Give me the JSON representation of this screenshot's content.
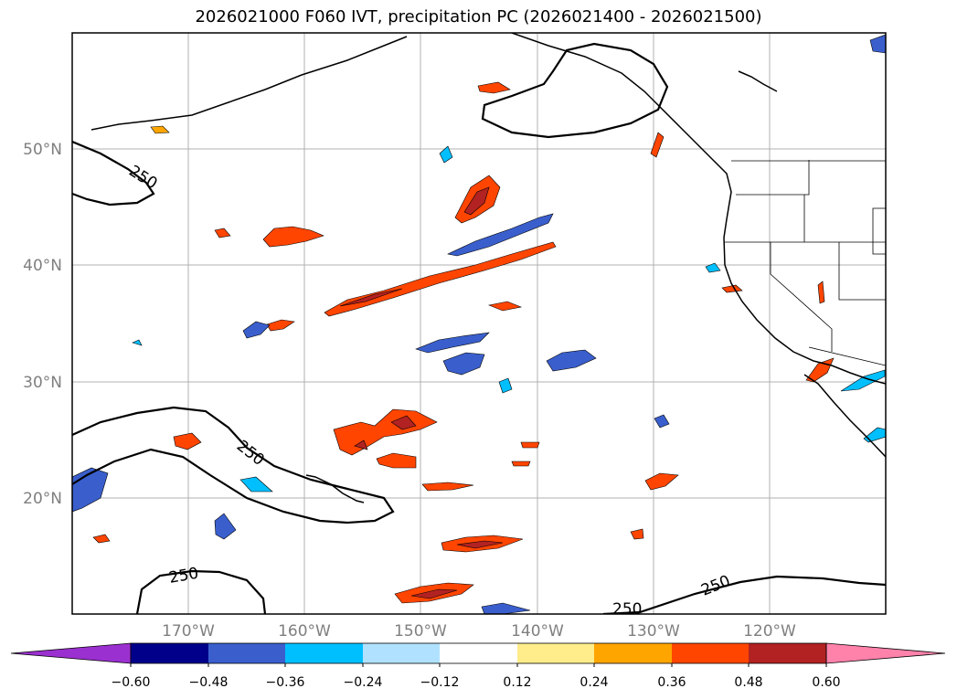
{
  "title": "2026021000 F060 IVT, precipitation PC (2026021400 - 2026021500)",
  "map": {
    "lat_labels": [
      "50°N",
      "40°N",
      "30°N",
      "20°N"
    ],
    "lon_labels": [
      "170°W",
      "160°W",
      "150°W",
      "140°W",
      "130°W",
      "120°W"
    ],
    "ivt_contour_level": "250",
    "ivt_contour_labels": [
      "250",
      "250",
      "250",
      "250",
      "250"
    ]
  },
  "colorbar": {
    "ticks": [
      "−0.60",
      "−0.48",
      "−0.36",
      "−0.24",
      "−0.12",
      "0.12",
      "0.24",
      "0.36",
      "0.48",
      "0.60"
    ],
    "colors": [
      "#9b30d0",
      "#00008b",
      "#3a5fcd",
      "#00bfff",
      "#b0e2ff",
      "#ffffff",
      "#ffec8b",
      "#ffa500",
      "#ff4500",
      "#b22222",
      "#ff82ab"
    ]
  },
  "colors": {
    "positive_strong": "#b22222",
    "positive_mid": "#ff4500",
    "positive_low": "#ffa500",
    "negative_low": "#00bfff",
    "negative_mid": "#3a5fcd"
  }
}
